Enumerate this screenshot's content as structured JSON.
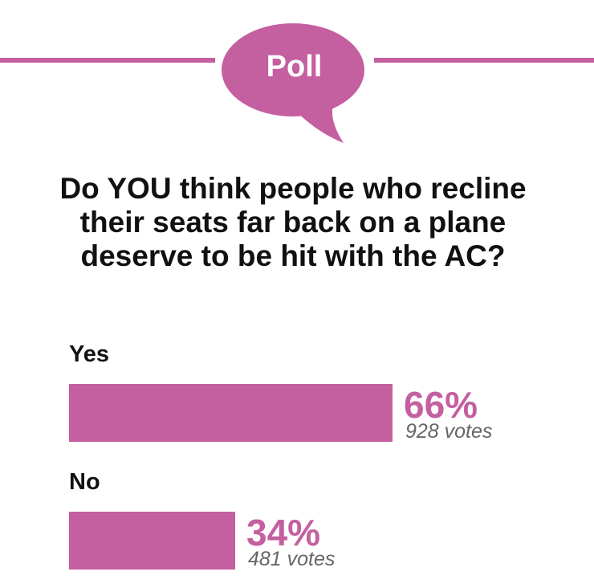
{
  "header": {
    "badge": "Poll",
    "icon": "speech-bubble-icon"
  },
  "question": "Do YOU think people who recline their seats far back on a plane deserve to be hit with the AC?",
  "options": [
    {
      "label": "Yes",
      "percent": 66,
      "percent_text": "66%",
      "votes_text": "928 votes"
    },
    {
      "label": "No",
      "percent": 34,
      "percent_text": "34%",
      "votes_text": "481 votes"
    }
  ],
  "colors": {
    "accent": "#c45fa0"
  }
}
